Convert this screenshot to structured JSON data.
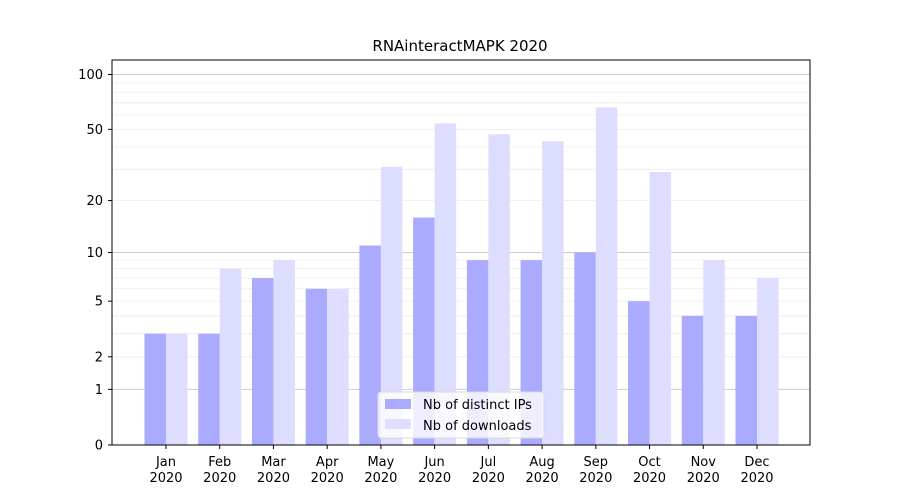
{
  "chart_data": {
    "type": "bar",
    "title": "RNAinteractMAPK 2020",
    "xlabel": "",
    "ylabel": "",
    "y_scale": "log(1+y)",
    "yticks": [
      0,
      1,
      2,
      5,
      10,
      20,
      50,
      100
    ],
    "ylim": [
      0,
      120
    ],
    "categories": [
      "Jan 2020",
      "Feb 2020",
      "Mar 2020",
      "Apr 2020",
      "May 2020",
      "Jun 2020",
      "Jul 2020",
      "Aug 2020",
      "Sep 2020",
      "Oct 2020",
      "Nov 2020",
      "Dec 2020"
    ],
    "series": [
      {
        "name": "Nb of distinct IPs",
        "color": "#aaaaff",
        "values": [
          3,
          3,
          7,
          6,
          11,
          16,
          9,
          9,
          10,
          5,
          4,
          4
        ]
      },
      {
        "name": "Nb of downloads",
        "color": "#ddddff",
        "values": [
          3,
          8,
          9,
          6,
          31,
          54,
          47,
          43,
          66,
          29,
          9,
          7
        ]
      }
    ],
    "grid": true,
    "legend_position": "bottom-center"
  }
}
